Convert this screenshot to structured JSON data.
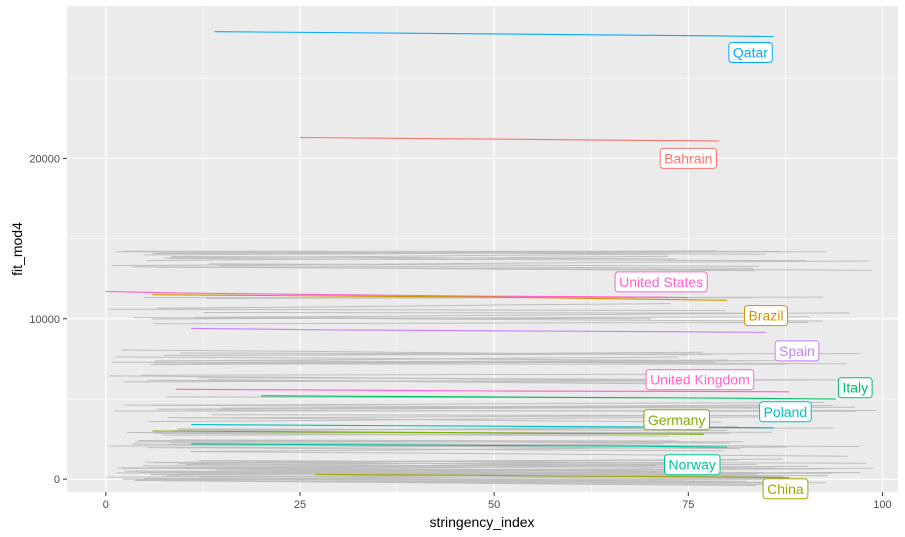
{
  "chart_data": {
    "type": "line",
    "xlabel": "stringency_index",
    "ylabel": "fit_mod4",
    "xlim": [
      -5,
      102
    ],
    "ylim": [
      -800,
      29500
    ],
    "x_ticks": [
      0,
      25,
      50,
      75,
      100
    ],
    "x_tick_labels": [
      "0",
      "25",
      "50",
      "75",
      "100"
    ],
    "y_ticks": [
      0,
      10000,
      20000
    ],
    "y_tick_labels": [
      "0",
      "10000",
      "20000"
    ],
    "grid": true,
    "panel_background": "#ebebeb",
    "grid_color": "#ffffff",
    "background_series_color": "#bebebe",
    "highlighted_series": [
      {
        "name": "Qatar",
        "color": "#00a9ff",
        "x": [
          14,
          28,
          40,
          52,
          64,
          76,
          86
        ],
        "y": [
          27900,
          27850,
          27800,
          27750,
          27700,
          27650,
          27600
        ],
        "label_x": 83,
        "label_y": 26600
      },
      {
        "name": "Bahrain",
        "color": "#f8766d",
        "x": [
          25,
          37,
          50,
          62,
          75,
          79
        ],
        "y": [
          21300,
          21250,
          21200,
          21150,
          21100,
          21080
        ],
        "label_x": 75,
        "label_y": 20000
      },
      {
        "name": "United States",
        "color": "#ff61cc",
        "x": [
          0,
          10,
          20,
          30,
          40,
          50,
          60,
          70,
          75
        ],
        "y": [
          11700,
          11600,
          11550,
          11500,
          11450,
          11400,
          11380,
          11350,
          11320
        ],
        "label_x": 71.5,
        "label_y": 12300
      },
      {
        "name": "Brazil",
        "color": "#cd9600",
        "x": [
          6,
          20,
          35,
          50,
          65,
          80
        ],
        "y": [
          11500,
          11450,
          11400,
          11350,
          11250,
          11150
        ],
        "label_x": 85,
        "label_y": 10200
      },
      {
        "name": "Spain",
        "color": "#c77cff",
        "x": [
          11,
          30,
          50,
          70,
          85
        ],
        "y": [
          9400,
          9300,
          9250,
          9200,
          9150
        ],
        "label_x": 89,
        "label_y": 8000
      },
      {
        "name": "United Kingdom",
        "color": "#ff61cc",
        "x": [
          9,
          30,
          50,
          70,
          88
        ],
        "y": [
          5600,
          5550,
          5500,
          5480,
          5450
        ],
        "label_x": 76.5,
        "label_y": 6200
      },
      {
        "name": "Italy",
        "color": "#00be67",
        "x": [
          20,
          40,
          60,
          80,
          94
        ],
        "y": [
          5200,
          5150,
          5100,
          5050,
          5000
        ],
        "label_x": 96.5,
        "label_y": 5700
      },
      {
        "name": "Poland",
        "color": "#00bfc4",
        "x": [
          11,
          30,
          50,
          70,
          86
        ],
        "y": [
          3400,
          3350,
          3300,
          3250,
          3200
        ],
        "label_x": 87.5,
        "label_y": 4200
      },
      {
        "name": "Germany",
        "color": "#7cae00",
        "x": [
          6,
          25,
          45,
          60,
          77
        ],
        "y": [
          3000,
          2950,
          2900,
          2850,
          2800
        ],
        "label_x": 73.5,
        "label_y": 3700
      },
      {
        "name": "Norway",
        "color": "#00c19a",
        "x": [
          11,
          30,
          50,
          70,
          80
        ],
        "y": [
          2200,
          2150,
          2100,
          2050,
          2000
        ],
        "label_x": 75.5,
        "label_y": 900
      },
      {
        "name": "China",
        "color": "#a3a500",
        "x": [
          27,
          45,
          60,
          75,
          88
        ],
        "y": [
          300,
          250,
          200,
          150,
          100
        ],
        "label_x": 87.5,
        "label_y": -600
      }
    ]
  }
}
